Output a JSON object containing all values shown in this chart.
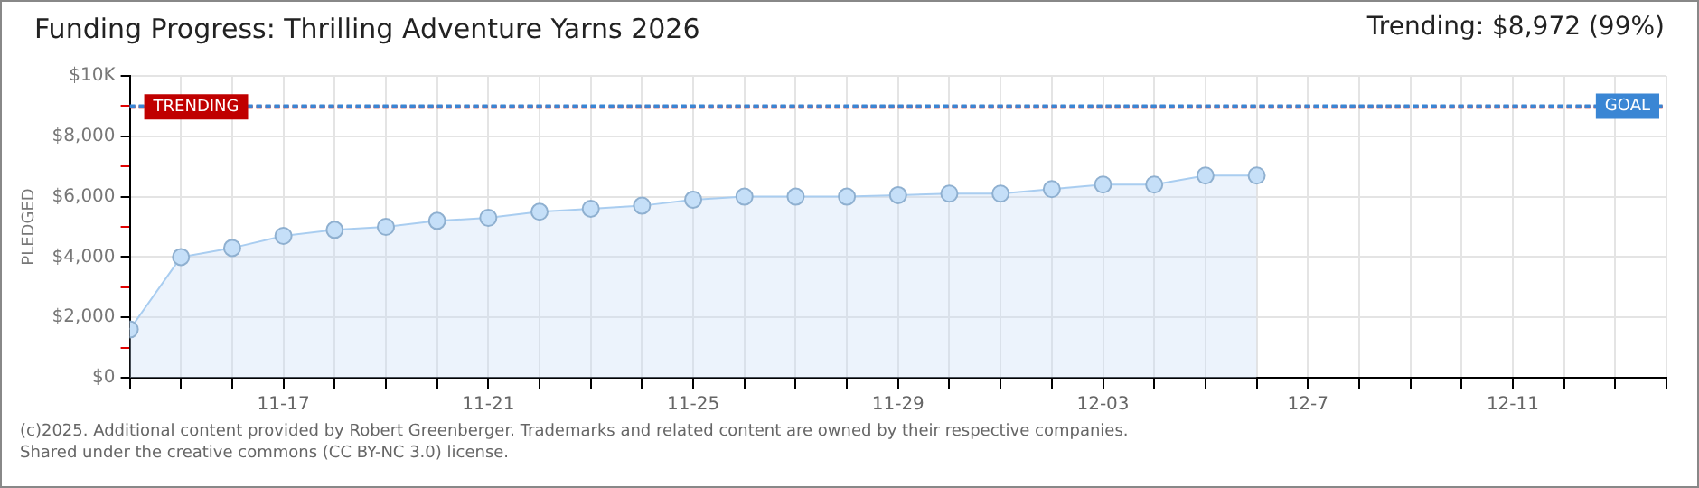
{
  "chart_data": {
    "type": "area",
    "title": "Funding Progress: Thrilling Adventure Yarns 2026",
    "subtitle": "Trending: $8,972 (99%)",
    "ylabel": "PLEDGED",
    "x": [
      "--11-14",
      "--11-15",
      "--11-16",
      "--11-17",
      "--11-18",
      "--11-19",
      "--11-20",
      "--11-21",
      "--11-22",
      "--11-23",
      "--11-24",
      "--11-25",
      "--11-26",
      "--11-27",
      "--11-28",
      "--11-29",
      "--11-30",
      "--12-01",
      "--12-02",
      "--12-03",
      "--12-04",
      "--12-05",
      "--12-06"
    ],
    "values": [
      1600,
      4000,
      4300,
      4700,
      4900,
      5000,
      5200,
      5300,
      5500,
      5600,
      5700,
      5900,
      6000,
      6000,
      6000,
      6050,
      6100,
      6100,
      6250,
      6400,
      6400,
      6700,
      6700
    ],
    "color": "#a9cdf0",
    "marker": "circle",
    "grid": true,
    "xlim": [
      "--11-14",
      "--12-14"
    ],
    "xticks": [
      {
        "value": "--11-14",
        "label": null
      },
      {
        "value": "--11-15",
        "label": null
      },
      {
        "value": "--11-16",
        "label": null
      },
      {
        "value": "--11-17",
        "label": "11-17"
      },
      {
        "value": "--11-18",
        "label": null
      },
      {
        "value": "--11-19",
        "label": null
      },
      {
        "value": "--11-20",
        "label": null
      },
      {
        "value": "--11-21",
        "label": "11-21"
      },
      {
        "value": "--11-22",
        "label": null
      },
      {
        "value": "--11-23",
        "label": null
      },
      {
        "value": "--11-24",
        "label": null
      },
      {
        "value": "--11-25",
        "label": "11-25"
      },
      {
        "value": "--11-26",
        "label": null
      },
      {
        "value": "--11-27",
        "label": null
      },
      {
        "value": "--11-28",
        "label": null
      },
      {
        "value": "--11-29",
        "label": "11-29"
      },
      {
        "value": "--11-30",
        "label": null
      },
      {
        "value": "--12-01",
        "label": null
      },
      {
        "value": "--12-02",
        "label": null
      },
      {
        "value": "--12-03",
        "label": "12-03"
      },
      {
        "value": "--12-04",
        "label": null
      },
      {
        "value": "--12-05",
        "label": null
      },
      {
        "value": "--12-06",
        "label": null
      },
      {
        "value": "--12-07",
        "label": "12-7"
      },
      {
        "value": "--12-08",
        "label": null
      },
      {
        "value": "--12-09",
        "label": null
      },
      {
        "value": "--12-10",
        "label": null
      },
      {
        "value": "--12-11",
        "label": "12-11"
      },
      {
        "value": "--12-12",
        "label": null
      },
      {
        "value": "--12-13",
        "label": null
      },
      {
        "value": "--12-14",
        "label": null
      }
    ],
    "ylim": [
      0,
      10000
    ],
    "yticks": [
      {
        "value": 0,
        "label": "$0"
      },
      {
        "value": 1000,
        "label": null
      },
      {
        "value": 2000,
        "label": "$2,000"
      },
      {
        "value": 3000,
        "label": null
      },
      {
        "value": 4000,
        "label": "$4,000"
      },
      {
        "value": 5000,
        "label": null
      },
      {
        "value": 6000,
        "label": "$6,000"
      },
      {
        "value": 7000,
        "label": null
      },
      {
        "value": 8000,
        "label": "$8,000"
      },
      {
        "value": 9000,
        "label": null
      },
      {
        "value": 10000,
        "label": "$10K"
      }
    ],
    "ref_lines": [
      {
        "axis": "y",
        "value": 8972,
        "label": "TRENDING",
        "color": "#c00000",
        "line_style": "dotted"
      },
      {
        "axis": "y",
        "value": 9000,
        "label": "GOAL",
        "color": "#3a86d4",
        "line_style": "dotted"
      }
    ],
    "annotations": [
      "(c)2025. Additional content provided by Robert Greenberger. Trademarks and related content are owned by their respective companies.",
      "Shared under the creative commons (CC BY-NC 3.0) license."
    ]
  }
}
